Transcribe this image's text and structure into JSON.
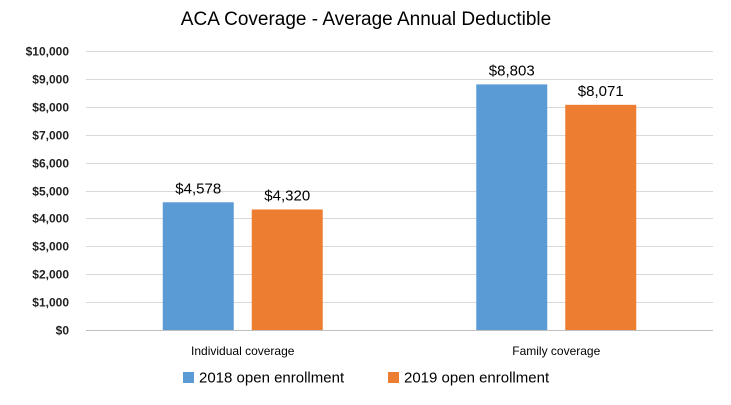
{
  "chart_data": {
    "type": "bar",
    "title": "ACA Coverage - Average Annual Deductible",
    "xlabel": "",
    "ylabel": "",
    "categories": [
      "Individual coverage",
      "Family coverage"
    ],
    "series": [
      {
        "name": "2018 open enrollment",
        "color": "#5b9bd5",
        "values": [
          4578,
          8803
        ],
        "labels": [
          "$4,578",
          "$8,803"
        ]
      },
      {
        "name": "2019 open enrollment",
        "color": "#ed7d31",
        "values": [
          4320,
          8071
        ],
        "labels": [
          "$4,320",
          "$8,071"
        ]
      }
    ],
    "ylim": [
      0,
      10000
    ],
    "ytick_values": [
      0,
      1000,
      2000,
      3000,
      4000,
      5000,
      6000,
      7000,
      8000,
      9000,
      10000
    ],
    "ytick_labels": [
      "$0",
      "$1,000",
      "$2,000",
      "$3,000",
      "$4,000",
      "$5,000",
      "$6,000",
      "$7,000",
      "$8,000",
      "$9,000",
      "$10,000"
    ],
    "grid": true,
    "legend_position": "bottom"
  }
}
